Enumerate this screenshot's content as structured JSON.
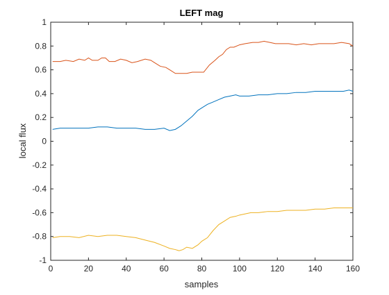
{
  "chart_data": {
    "type": "line",
    "title": "LEFT mag",
    "xlabel": "samples",
    "ylabel": "local flux",
    "xlim": [
      0,
      160
    ],
    "ylim": [
      -1,
      1
    ],
    "xticks": [
      0,
      20,
      40,
      60,
      80,
      100,
      120,
      140,
      160
    ],
    "yticks": [
      -1,
      -0.8,
      -0.6,
      -0.4,
      -0.2,
      0,
      0.2,
      0.4,
      0.6,
      0.8,
      1
    ],
    "grid": false,
    "legend": "none",
    "series": [
      {
        "color": "#D95319",
        "x": [
          1,
          5,
          8,
          12,
          15,
          18,
          20,
          22,
          25,
          27,
          29,
          31,
          34,
          37,
          40,
          43,
          46,
          50,
          53,
          55,
          58,
          61,
          63,
          66,
          69,
          72,
          75,
          78,
          81,
          84,
          87,
          89,
          91,
          93,
          95,
          97,
          100,
          103,
          107,
          110,
          113,
          116,
          119,
          122,
          126,
          130,
          134,
          138,
          142,
          146,
          150,
          154,
          158,
          160
        ],
        "y": [
          0.67,
          0.67,
          0.68,
          0.67,
          0.69,
          0.68,
          0.7,
          0.68,
          0.68,
          0.7,
          0.7,
          0.67,
          0.67,
          0.69,
          0.68,
          0.66,
          0.67,
          0.69,
          0.68,
          0.66,
          0.63,
          0.62,
          0.6,
          0.57,
          0.57,
          0.57,
          0.58,
          0.58,
          0.58,
          0.64,
          0.68,
          0.71,
          0.73,
          0.77,
          0.79,
          0.79,
          0.81,
          0.82,
          0.83,
          0.83,
          0.84,
          0.83,
          0.82,
          0.82,
          0.82,
          0.81,
          0.82,
          0.81,
          0.82,
          0.82,
          0.82,
          0.83,
          0.82,
          0.8
        ]
      },
      {
        "color": "#0072BD",
        "x": [
          1,
          5,
          10,
          15,
          20,
          25,
          30,
          35,
          40,
          45,
          50,
          55,
          60,
          63,
          66,
          69,
          72,
          75,
          78,
          80,
          83,
          86,
          89,
          92,
          95,
          98,
          100,
          105,
          110,
          115,
          120,
          125,
          130,
          135,
          140,
          145,
          150,
          155,
          158,
          160
        ],
        "y": [
          0.1,
          0.11,
          0.11,
          0.11,
          0.11,
          0.12,
          0.12,
          0.11,
          0.11,
          0.11,
          0.1,
          0.1,
          0.11,
          0.09,
          0.1,
          0.13,
          0.17,
          0.21,
          0.26,
          0.28,
          0.31,
          0.33,
          0.35,
          0.37,
          0.38,
          0.39,
          0.38,
          0.38,
          0.39,
          0.39,
          0.4,
          0.4,
          0.41,
          0.41,
          0.42,
          0.42,
          0.42,
          0.42,
          0.43,
          0.42
        ]
      },
      {
        "color": "#EDB120",
        "x": [
          1,
          5,
          10,
          15,
          20,
          25,
          30,
          35,
          40,
          45,
          50,
          55,
          60,
          63,
          66,
          68,
          70,
          72,
          75,
          78,
          80,
          83,
          86,
          89,
          92,
          95,
          98,
          100,
          103,
          106,
          110,
          115,
          120,
          125,
          130,
          135,
          140,
          145,
          150,
          155,
          160
        ],
        "y": [
          -0.81,
          -0.8,
          -0.8,
          -0.81,
          -0.79,
          -0.8,
          -0.79,
          -0.79,
          -0.8,
          -0.81,
          -0.83,
          -0.85,
          -0.88,
          -0.9,
          -0.91,
          -0.92,
          -0.91,
          -0.89,
          -0.9,
          -0.87,
          -0.84,
          -0.81,
          -0.75,
          -0.7,
          -0.67,
          -0.64,
          -0.63,
          -0.62,
          -0.61,
          -0.6,
          -0.6,
          -0.59,
          -0.59,
          -0.58,
          -0.58,
          -0.58,
          -0.57,
          -0.57,
          -0.56,
          -0.56,
          -0.56
        ]
      }
    ]
  }
}
